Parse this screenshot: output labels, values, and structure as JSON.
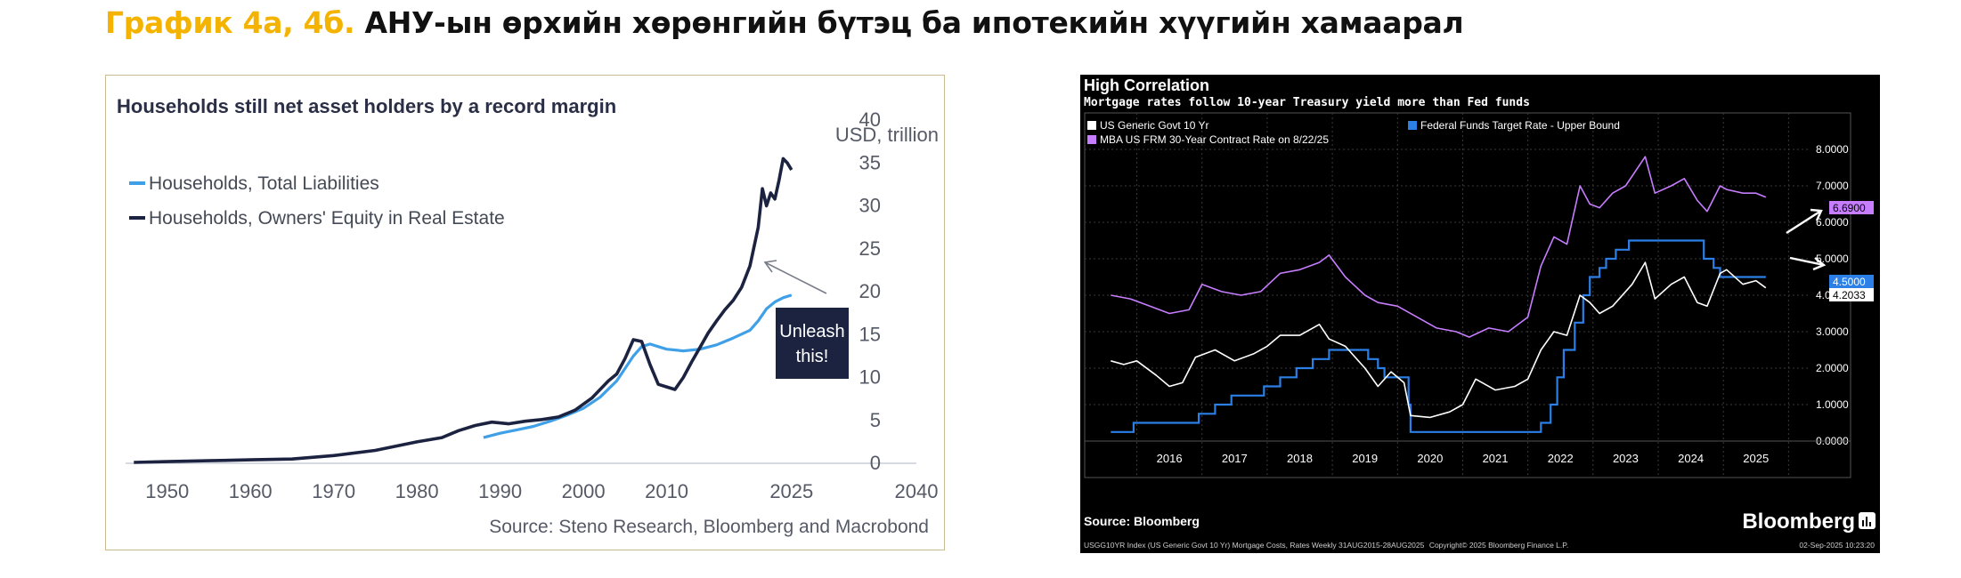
{
  "page_title": {
    "prefix": "График 4а, 4б.",
    "main": "АНУ-ын өрхийн хөрөнгийн бүтэц ба ипотекийн хүүгийн хамаарал"
  },
  "chart_data": [
    {
      "type": "line",
      "title": "Households still net asset holders by a record margin",
      "ylabel": "USD, trillion",
      "xlim": [
        1945,
        2040
      ],
      "ylim": [
        0,
        40
      ],
      "x_ticks": [
        "1950",
        "1960",
        "1970",
        "1980",
        "1990",
        "2000",
        "2010",
        "2025",
        "2040"
      ],
      "x_tick_values": [
        1950,
        1960,
        1970,
        1980,
        1990,
        2000,
        2010,
        2025,
        2040
      ],
      "y_ticks": [
        "0",
        "5",
        "10",
        "15",
        "20",
        "25",
        "30",
        "35",
        "40"
      ],
      "y_tick_values": [
        0,
        5,
        10,
        15,
        20,
        25,
        30,
        35,
        40
      ],
      "grid": false,
      "legend_position": "top-left",
      "series": [
        {
          "name": "Households, Total Liabilities",
          "color": "#3fa0e8",
          "points": [
            [
              1988,
              3
            ],
            [
              1990,
              3.5
            ],
            [
              1992,
              3.9
            ],
            [
              1994,
              4.3
            ],
            [
              1996,
              4.9
            ],
            [
              1998,
              5.6
            ],
            [
              2000,
              6.4
            ],
            [
              2002,
              7.7
            ],
            [
              2004,
              9.6
            ],
            [
              2006,
              12.5
            ],
            [
              2007,
              13.6
            ],
            [
              2008,
              13.9
            ],
            [
              2009,
              13.6
            ],
            [
              2010,
              13.3
            ],
            [
              2012,
              13.1
            ],
            [
              2014,
              13.3
            ],
            [
              2016,
              13.8
            ],
            [
              2018,
              14.6
            ],
            [
              2020,
              15.5
            ],
            [
              2021,
              16.6
            ],
            [
              2022,
              18.0
            ],
            [
              2023,
              18.8
            ],
            [
              2024,
              19.3
            ],
            [
              2025,
              19.6
            ]
          ]
        },
        {
          "name": "Households, Owners' Equity in Real Estate",
          "color": "#1c2340",
          "points": [
            [
              1946,
              0.1
            ],
            [
              1950,
              0.2
            ],
            [
              1955,
              0.3
            ],
            [
              1960,
              0.4
            ],
            [
              1965,
              0.5
            ],
            [
              1970,
              0.9
            ],
            [
              1975,
              1.5
            ],
            [
              1980,
              2.5
            ],
            [
              1983,
              3.0
            ],
            [
              1985,
              3.8
            ],
            [
              1987,
              4.4
            ],
            [
              1989,
              4.8
            ],
            [
              1991,
              4.6
            ],
            [
              1993,
              4.9
            ],
            [
              1995,
              5.1
            ],
            [
              1997,
              5.4
            ],
            [
              1999,
              6.2
            ],
            [
              2001,
              7.6
            ],
            [
              2003,
              9.6
            ],
            [
              2004,
              10.4
            ],
            [
              2005,
              12.2
            ],
            [
              2006,
              14.4
            ],
            [
              2007,
              14.2
            ],
            [
              2008,
              11.5
            ],
            [
              2009,
              9.2
            ],
            [
              2010,
              8.9
            ],
            [
              2011,
              8.6
            ],
            [
              2012,
              10.0
            ],
            [
              2013,
              11.8
            ],
            [
              2014,
              13.5
            ],
            [
              2015,
              15.2
            ],
            [
              2016,
              16.6
            ],
            [
              2017,
              17.9
            ],
            [
              2018,
              19.0
            ],
            [
              2019,
              20.5
            ],
            [
              2020,
              23.0
            ],
            [
              2021,
              27.5
            ],
            [
              2021.5,
              32.0
            ],
            [
              2022,
              30.0
            ],
            [
              2022.5,
              31.5
            ],
            [
              2023,
              30.8
            ],
            [
              2023.5,
              33.0
            ],
            [
              2024,
              35.5
            ],
            [
              2024.5,
              35.0
            ],
            [
              2025,
              34.2
            ]
          ]
        }
      ],
      "annotation": {
        "text_line1": "Unleash",
        "text_line2": "this!",
        "color": "#1c2340"
      },
      "source": "Source: Steno Research, Bloomberg and Macrobond"
    },
    {
      "type": "line",
      "title": "High Correlation",
      "subtitle": "Mortgage rates follow 10-year Treasury yield more than Fed funds",
      "xlim": [
        2015.2,
        2026.2
      ],
      "ylim": [
        -1,
        9
      ],
      "x_ticks": [
        "2016",
        "2017",
        "2018",
        "2019",
        "2020",
        "2021",
        "2022",
        "2023",
        "2024",
        "2025"
      ],
      "y_ticks": [
        "0.0000",
        "1.0000",
        "2.0000",
        "3.0000",
        "4.0000",
        "5.0000",
        "6.0000",
        "7.0000",
        "8.0000"
      ],
      "y_tick_values": [
        0,
        1,
        2,
        3,
        4,
        5,
        6,
        7,
        8
      ],
      "grid": true,
      "legend_position": "top",
      "series": [
        {
          "name": "US Generic Govt 10 Yr",
          "color": "#ffffff",
          "last_value": "4.2033",
          "points": [
            [
              2015.6,
              2.2
            ],
            [
              2015.8,
              2.1
            ],
            [
              2016.0,
              2.2
            ],
            [
              2016.3,
              1.8
            ],
            [
              2016.5,
              1.5
            ],
            [
              2016.7,
              1.6
            ],
            [
              2016.9,
              2.3
            ],
            [
              2017.2,
              2.5
            ],
            [
              2017.5,
              2.2
            ],
            [
              2017.8,
              2.4
            ],
            [
              2018.0,
              2.6
            ],
            [
              2018.2,
              2.9
            ],
            [
              2018.5,
              2.9
            ],
            [
              2018.8,
              3.2
            ],
            [
              2018.95,
              2.8
            ],
            [
              2019.2,
              2.6
            ],
            [
              2019.5,
              2.0
            ],
            [
              2019.7,
              1.5
            ],
            [
              2019.9,
              1.9
            ],
            [
              2020.1,
              1.6
            ],
            [
              2020.2,
              0.7
            ],
            [
              2020.5,
              0.65
            ],
            [
              2020.8,
              0.8
            ],
            [
              2021.0,
              1.0
            ],
            [
              2021.2,
              1.7
            ],
            [
              2021.5,
              1.4
            ],
            [
              2021.8,
              1.5
            ],
            [
              2022.0,
              1.7
            ],
            [
              2022.2,
              2.5
            ],
            [
              2022.4,
              3.0
            ],
            [
              2022.6,
              2.9
            ],
            [
              2022.8,
              4.0
            ],
            [
              2022.95,
              3.8
            ],
            [
              2023.1,
              3.5
            ],
            [
              2023.3,
              3.7
            ],
            [
              2023.6,
              4.3
            ],
            [
              2023.8,
              4.9
            ],
            [
              2023.95,
              3.9
            ],
            [
              2024.2,
              4.3
            ],
            [
              2024.4,
              4.5
            ],
            [
              2024.6,
              3.8
            ],
            [
              2024.75,
              3.7
            ],
            [
              2024.95,
              4.6
            ],
            [
              2025.05,
              4.7
            ],
            [
              2025.3,
              4.3
            ],
            [
              2025.5,
              4.4
            ],
            [
              2025.65,
              4.2033
            ]
          ]
        },
        {
          "name": "MBA US FRM 30-Year Contract Rate on 8/22/25",
          "color": "#c77dff",
          "last_value": "6.6900",
          "points": [
            [
              2015.6,
              4.0
            ],
            [
              2015.9,
              3.9
            ],
            [
              2016.2,
              3.7
            ],
            [
              2016.5,
              3.5
            ],
            [
              2016.8,
              3.6
            ],
            [
              2017.0,
              4.3
            ],
            [
              2017.3,
              4.1
            ],
            [
              2017.6,
              4.0
            ],
            [
              2017.9,
              4.1
            ],
            [
              2018.2,
              4.6
            ],
            [
              2018.5,
              4.7
            ],
            [
              2018.8,
              4.9
            ],
            [
              2018.95,
              5.1
            ],
            [
              2019.2,
              4.5
            ],
            [
              2019.5,
              4.0
            ],
            [
              2019.7,
              3.8
            ],
            [
              2020.0,
              3.7
            ],
            [
              2020.3,
              3.4
            ],
            [
              2020.6,
              3.1
            ],
            [
              2020.9,
              3.0
            ],
            [
              2021.1,
              2.85
            ],
            [
              2021.4,
              3.1
            ],
            [
              2021.7,
              3.0
            ],
            [
              2022.0,
              3.4
            ],
            [
              2022.2,
              4.8
            ],
            [
              2022.4,
              5.6
            ],
            [
              2022.6,
              5.4
            ],
            [
              2022.8,
              7.0
            ],
            [
              2022.95,
              6.5
            ],
            [
              2023.1,
              6.4
            ],
            [
              2023.3,
              6.8
            ],
            [
              2023.5,
              7.0
            ],
            [
              2023.8,
              7.8
            ],
            [
              2023.95,
              6.8
            ],
            [
              2024.2,
              7.0
            ],
            [
              2024.4,
              7.2
            ],
            [
              2024.6,
              6.6
            ],
            [
              2024.75,
              6.3
            ],
            [
              2024.95,
              7.0
            ],
            [
              2025.05,
              6.9
            ],
            [
              2025.3,
              6.8
            ],
            [
              2025.5,
              6.8
            ],
            [
              2025.65,
              6.69
            ]
          ]
        },
        {
          "name": "Federal Funds Target Rate - Upper Bound",
          "color": "#2b7fe6",
          "last_value": "4.5000",
          "step": true,
          "points": [
            [
              2015.6,
              0.25
            ],
            [
              2015.95,
              0.5
            ],
            [
              2016.95,
              0.75
            ],
            [
              2017.2,
              1.0
            ],
            [
              2017.45,
              1.25
            ],
            [
              2017.95,
              1.5
            ],
            [
              2018.2,
              1.75
            ],
            [
              2018.45,
              2.0
            ],
            [
              2018.7,
              2.25
            ],
            [
              2018.95,
              2.5
            ],
            [
              2019.55,
              2.25
            ],
            [
              2019.7,
              2.0
            ],
            [
              2019.8,
              1.75
            ],
            [
              2020.17,
              1.0
            ],
            [
              2020.2,
              0.25
            ],
            [
              2022.2,
              0.5
            ],
            [
              2022.35,
              1.0
            ],
            [
              2022.45,
              1.75
            ],
            [
              2022.55,
              2.5
            ],
            [
              2022.72,
              3.25
            ],
            [
              2022.85,
              4.0
            ],
            [
              2022.95,
              4.5
            ],
            [
              2023.1,
              4.75
            ],
            [
              2023.2,
              5.0
            ],
            [
              2023.35,
              5.25
            ],
            [
              2023.55,
              5.5
            ],
            [
              2024.7,
              5.0
            ],
            [
              2024.85,
              4.75
            ],
            [
              2024.95,
              4.5
            ],
            [
              2025.65,
              4.5
            ]
          ]
        }
      ],
      "label_values": {
        "mba": "6.6900",
        "fed": "4.5000",
        "tsy": "4.2033"
      },
      "source": "Source: Bloomberg",
      "brand": "Bloomberg",
      "footer_left": "USGG10YR Index (US Generic Govt 10 Yr) Mortgage Costs, Rates  Weekly 31AUG2015-28AUG2025",
      "footer_center": "Copyright© 2025 Bloomberg Finance L.P.",
      "footer_right": "02-Sep-2025 10:23:20"
    }
  ]
}
